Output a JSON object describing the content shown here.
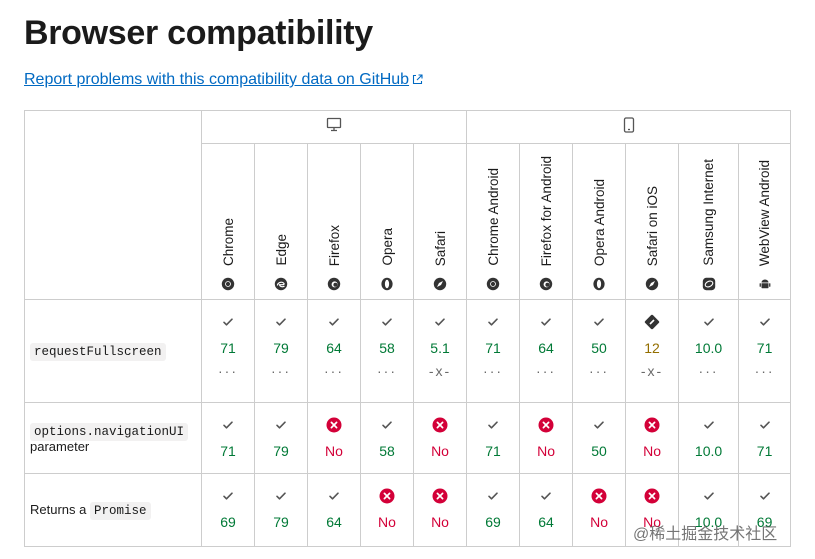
{
  "heading": "Browser compatibility",
  "report_link": "Report problems with this compatibility data on GitHub",
  "groups": [
    {
      "name": "desktop",
      "icon": "desktop-icon"
    },
    {
      "name": "mobile",
      "icon": "mobile-icon"
    }
  ],
  "browsers": [
    {
      "name": "Chrome",
      "icon": "chrome-icon"
    },
    {
      "name": "Edge",
      "icon": "edge-icon"
    },
    {
      "name": "Firefox",
      "icon": "firefox-icon"
    },
    {
      "name": "Opera",
      "icon": "opera-icon"
    },
    {
      "name": "Safari",
      "icon": "safari-icon"
    },
    {
      "name": "Chrome Android",
      "icon": "chrome-icon"
    },
    {
      "name": "Firefox for Android",
      "icon": "firefox-icon"
    },
    {
      "name": "Opera Android",
      "icon": "opera-icon"
    },
    {
      "name": "Safari on iOS",
      "icon": "safari-icon"
    },
    {
      "name": "Samsung Internet",
      "icon": "samsung-icon"
    },
    {
      "name": "WebView Android",
      "icon": "android-icon"
    }
  ],
  "features": [
    {
      "code": "requestFullscreen",
      "text_before": "",
      "text_after": "",
      "cells": [
        {
          "status": "yes",
          "version": "71",
          "dots": "···"
        },
        {
          "status": "yes",
          "version": "79",
          "dots": "···"
        },
        {
          "status": "yes",
          "version": "64",
          "dots": "···"
        },
        {
          "status": "yes",
          "version": "58",
          "dots": "···"
        },
        {
          "status": "yes",
          "version": "5.1",
          "dots": "-x-"
        },
        {
          "status": "yes",
          "version": "71",
          "dots": "···"
        },
        {
          "status": "yes",
          "version": "64",
          "dots": "···"
        },
        {
          "status": "yes",
          "version": "50",
          "dots": "···"
        },
        {
          "status": "partial",
          "version": "12",
          "dots": "-x-"
        },
        {
          "status": "yes",
          "version": "10.0",
          "dots": "···"
        },
        {
          "status": "yes",
          "version": "71",
          "dots": "···"
        }
      ]
    },
    {
      "code": "options.navigationUI",
      "text_before": "",
      "text_after": "parameter",
      "cells": [
        {
          "status": "yes",
          "version": "71"
        },
        {
          "status": "yes",
          "version": "79"
        },
        {
          "status": "no",
          "version": "No"
        },
        {
          "status": "yes",
          "version": "58"
        },
        {
          "status": "no",
          "version": "No"
        },
        {
          "status": "yes",
          "version": "71"
        },
        {
          "status": "no",
          "version": "No"
        },
        {
          "status": "yes",
          "version": "50"
        },
        {
          "status": "no",
          "version": "No"
        },
        {
          "status": "yes",
          "version": "10.0"
        },
        {
          "status": "yes",
          "version": "71"
        }
      ]
    },
    {
      "code": "Promise",
      "text_before": "Returns a",
      "text_after": "",
      "cells": [
        {
          "status": "yes",
          "version": "69"
        },
        {
          "status": "yes",
          "version": "79"
        },
        {
          "status": "yes",
          "version": "64"
        },
        {
          "status": "no",
          "version": "No"
        },
        {
          "status": "no",
          "version": "No"
        },
        {
          "status": "yes",
          "version": "69"
        },
        {
          "status": "yes",
          "version": "64"
        },
        {
          "status": "no",
          "version": "No"
        },
        {
          "status": "no",
          "version": "No"
        },
        {
          "status": "yes",
          "version": "10.0"
        },
        {
          "status": "yes",
          "version": "69"
        }
      ]
    }
  ],
  "watermark": "@稀土掘金技术社区",
  "colors": {
    "yes": "#007936",
    "no": "#d30038",
    "partial": "#936e00",
    "link": "#0069c2",
    "border": "#cdcdcd"
  }
}
